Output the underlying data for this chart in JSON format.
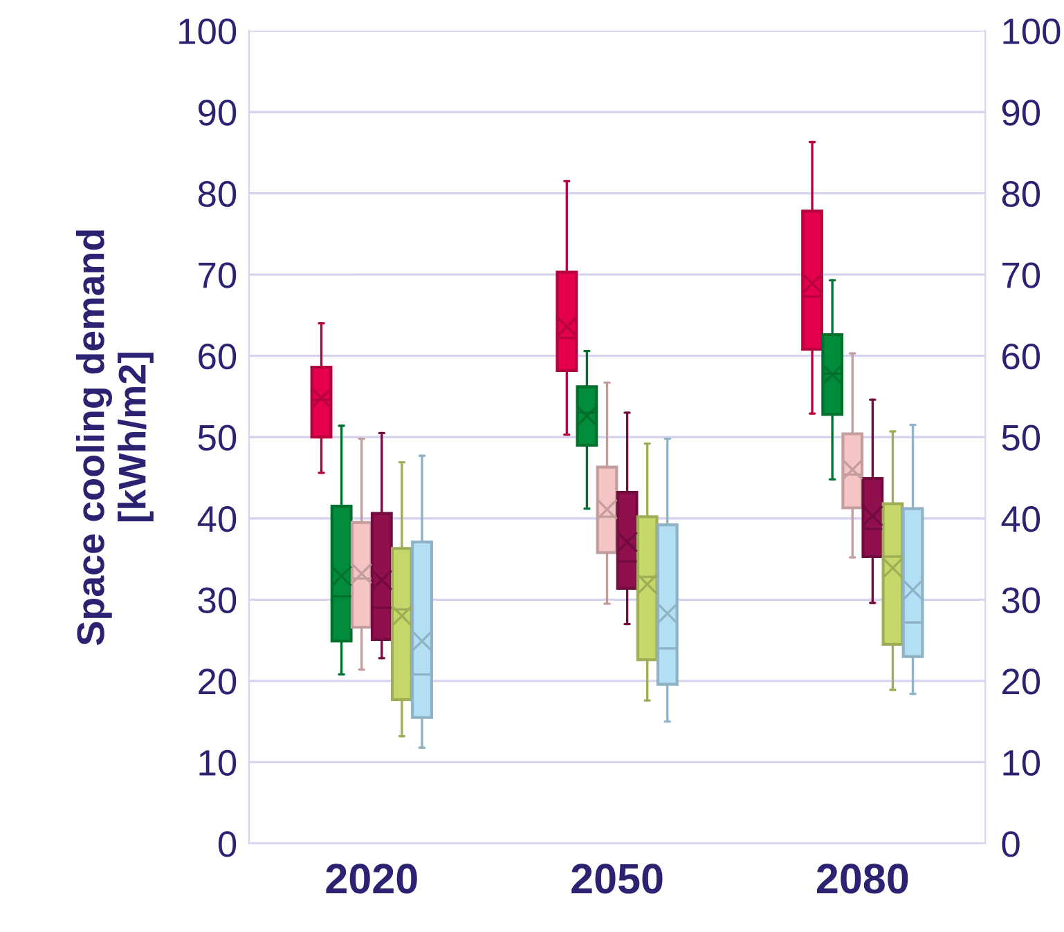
{
  "chart_data": {
    "type": "box",
    "ylabel": "Space cooling demand\n[kWh/m2]",
    "categories": [
      "2020",
      "2050",
      "2080"
    ],
    "ylim": [
      0,
      100
    ],
    "yticks": [
      0,
      10,
      20,
      30,
      40,
      50,
      60,
      70,
      80,
      90,
      100
    ],
    "y2lim": [
      0,
      100
    ],
    "y2ticks": [
      0,
      10,
      20,
      30,
      40,
      50,
      60,
      70,
      80,
      90,
      100
    ],
    "grid": "y",
    "series": [
      {
        "color": "#e4004f",
        "boxes": [
          {
            "low": 45.6,
            "q1": 50,
            "median": 54.6,
            "q3": 58.6,
            "high": 64,
            "mean": 54.8
          },
          {
            "low": 50.3,
            "q1": 58.2,
            "median": 62.2,
            "q3": 70.3,
            "high": 81.5,
            "mean": 63.6
          },
          {
            "low": 52.9,
            "q1": 60.8,
            "median": 67.3,
            "q3": 77.8,
            "high": 86.3,
            "mean": 68.9
          }
        ]
      },
      {
        "color": "#008c3a",
        "boxes": [
          {
            "low": 20.8,
            "q1": 24.9,
            "median": 30.4,
            "q3": 41.5,
            "high": 51.4,
            "mean": 32.9
          },
          {
            "low": 41.2,
            "q1": 49,
            "median": 53,
            "q3": 56.2,
            "high": 60.6,
            "mean": 52.6
          },
          {
            "low": 44.8,
            "q1": 52.8,
            "median": 57.8,
            "q3": 62.6,
            "high": 69.3,
            "mean": 57.7
          }
        ]
      },
      {
        "color": "#f5c4c4",
        "boxes": [
          {
            "low": 21.4,
            "q1": 26.6,
            "median": 32.6,
            "q3": 39.5,
            "high": 49.8,
            "mean": 33.2
          },
          {
            "low": 29.5,
            "q1": 35.8,
            "median": 40.2,
            "q3": 46.3,
            "high": 56.7,
            "mean": 41.1
          },
          {
            "low": 35.2,
            "q1": 41.3,
            "median": 45.4,
            "q3": 50.4,
            "high": 60.3,
            "mean": 46
          }
        ]
      },
      {
        "color": "#8f0f4f",
        "boxes": [
          {
            "low": 22.8,
            "q1": 25.1,
            "median": 29,
            "q3": 40.6,
            "high": 50.5,
            "mean": 32.4
          },
          {
            "low": 27,
            "q1": 31.4,
            "median": 34.7,
            "q3": 43.2,
            "high": 53,
            "mean": 37.1
          },
          {
            "low": 29.6,
            "q1": 35.3,
            "median": 38.7,
            "q3": 44.9,
            "high": 54.6,
            "mean": 40.3
          }
        ]
      },
      {
        "color": "#c6d86c",
        "boxes": [
          {
            "low": 13.2,
            "q1": 17.7,
            "median": 28.8,
            "q3": 36.3,
            "high": 46.9,
            "mean": 28
          },
          {
            "low": 17.6,
            "q1": 22.6,
            "median": 32.8,
            "q3": 40.2,
            "high": 49.2,
            "mean": 31.9
          },
          {
            "low": 18.9,
            "q1": 24.5,
            "median": 35.3,
            "q3": 41.8,
            "high": 50.7,
            "mean": 33.9
          }
        ]
      },
      {
        "color": "#b3dff5",
        "boxes": [
          {
            "low": 11.8,
            "q1": 15.5,
            "median": 20.8,
            "q3": 37.1,
            "high": 47.7,
            "mean": 24.9
          },
          {
            "low": 15,
            "q1": 19.6,
            "median": 24,
            "q3": 39.2,
            "high": 49.8,
            "mean": 28.3
          },
          {
            "low": 18.4,
            "q1": 23,
            "median": 27.2,
            "q3": 41.2,
            "high": 51.5,
            "mean": 31.2
          }
        ]
      }
    ]
  }
}
